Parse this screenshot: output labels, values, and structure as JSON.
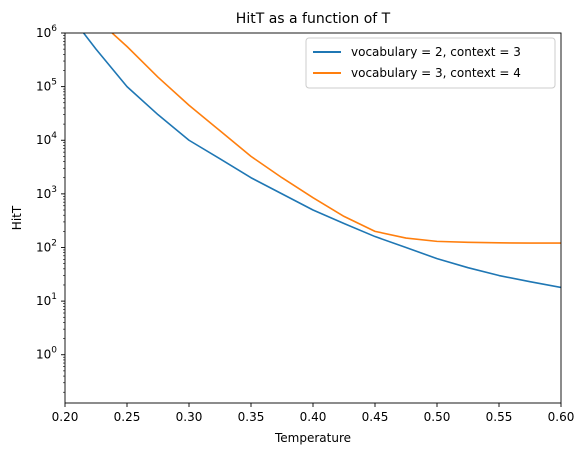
{
  "chart_data": {
    "type": "line",
    "title": "HitT as a function of T",
    "xlabel": "Temperature",
    "ylabel": "HitT",
    "xlim": [
      0.2,
      0.6
    ],
    "ylim_log10": [
      -0.9,
      6
    ],
    "yscale": "log",
    "x_ticks": [
      "0.20",
      "0.25",
      "0.30",
      "0.35",
      "0.40",
      "0.45",
      "0.50",
      "0.55",
      "0.60"
    ],
    "y_ticks": [
      {
        "base": "10",
        "exp": "0"
      },
      {
        "base": "10",
        "exp": "1"
      },
      {
        "base": "10",
        "exp": "2"
      },
      {
        "base": "10",
        "exp": "3"
      },
      {
        "base": "10",
        "exp": "4"
      },
      {
        "base": "10",
        "exp": "5"
      },
      {
        "base": "10",
        "exp": "6"
      }
    ],
    "legend_position": "top-right",
    "grid": false,
    "series": [
      {
        "name": "vocabulary = 2, context = 3",
        "color": "#1f77b4",
        "x": [
          0.215,
          0.225,
          0.25,
          0.275,
          0.3,
          0.325,
          0.35,
          0.375,
          0.4,
          0.425,
          0.45,
          0.475,
          0.5,
          0.525,
          0.55,
          0.575,
          0.6
        ],
        "y": [
          1000000,
          500000,
          100000,
          30000,
          10000,
          4500,
          2000,
          1000,
          500,
          280,
          160,
          100,
          62,
          42,
          30,
          23,
          18
        ]
      },
      {
        "name": "vocabulary = 3, context = 4",
        "color": "#ff7f0e",
        "x": [
          0.238,
          0.25,
          0.275,
          0.3,
          0.325,
          0.35,
          0.375,
          0.4,
          0.425,
          0.45,
          0.475,
          0.5,
          0.525,
          0.55,
          0.575,
          0.6
        ],
        "y": [
          1000000,
          560000,
          150000,
          45000,
          15000,
          5000,
          2000,
          850,
          380,
          200,
          150,
          130,
          125,
          122,
          121,
          121
        ]
      }
    ]
  }
}
